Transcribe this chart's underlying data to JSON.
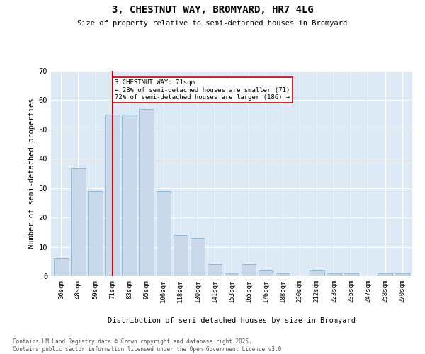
{
  "title": "3, CHESTNUT WAY, BROMYARD, HR7 4LG",
  "subtitle": "Size of property relative to semi-detached houses in Bromyard",
  "xlabel": "Distribution of semi-detached houses by size in Bromyard",
  "ylabel": "Number of semi-detached properties",
  "footnote": "Contains HM Land Registry data © Crown copyright and database right 2025.\nContains public sector information licensed under the Open Government Licence v3.0.",
  "annotation_line1": "3 CHESTNUT WAY: 71sqm",
  "annotation_line2": "← 28% of semi-detached houses are smaller (71)",
  "annotation_line3": "72% of semi-detached houses are larger (186) →",
  "categories": [
    "36sqm",
    "48sqm",
    "59sqm",
    "71sqm",
    "83sqm",
    "95sqm",
    "106sqm",
    "118sqm",
    "130sqm",
    "141sqm",
    "153sqm",
    "165sqm",
    "176sqm",
    "188sqm",
    "200sqm",
    "212sqm",
    "223sqm",
    "235sqm",
    "247sqm",
    "258sqm",
    "270sqm"
  ],
  "values": [
    6,
    37,
    29,
    55,
    55,
    57,
    29,
    14,
    13,
    4,
    1,
    4,
    2,
    1,
    0,
    2,
    1,
    1,
    0,
    1,
    1
  ],
  "bar_color": "#c9d9ea",
  "bar_edge_color": "#7aaac8",
  "highlight_bar_index": 3,
  "red_line_color": "#cc0000",
  "annotation_box_color": "#cc0000",
  "background_color": "#ddeaf5",
  "ylim": [
    0,
    70
  ],
  "yticks": [
    0,
    10,
    20,
    30,
    40,
    50,
    60,
    70
  ]
}
